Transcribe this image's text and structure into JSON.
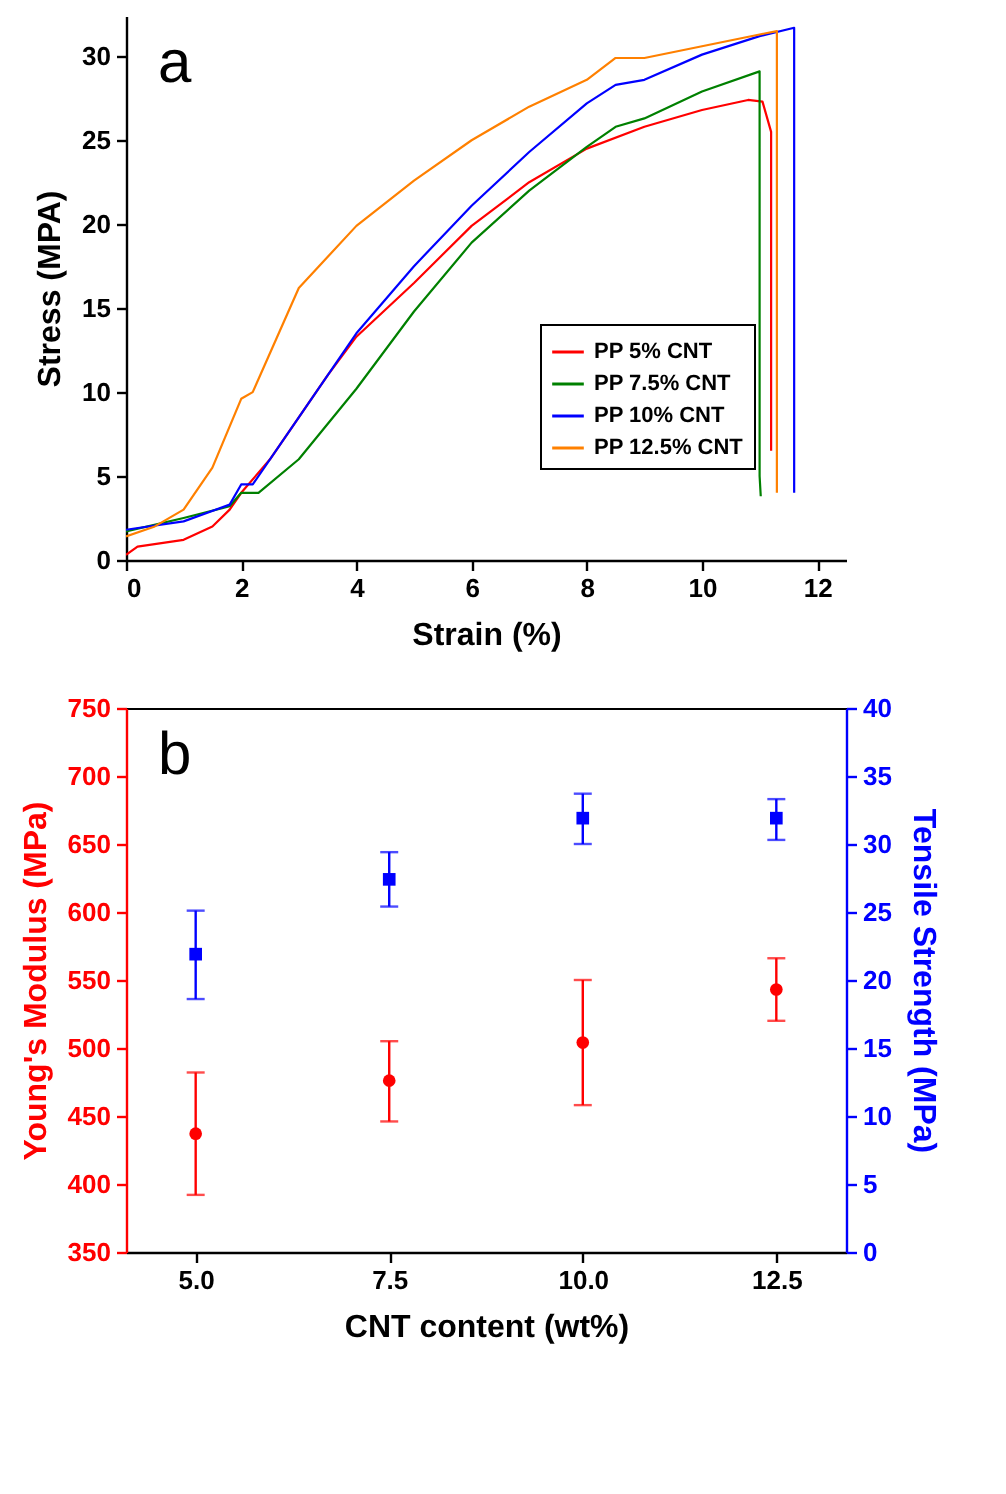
{
  "chart_data": [
    {
      "type": "line",
      "xlabel": "Strain (%)",
      "ylabel": "Stress (MPA)",
      "annotations": [
        "a"
      ],
      "xlim": [
        0,
        12.5
      ],
      "ylim": [
        0,
        32.4
      ],
      "xticks": [
        0,
        2,
        4,
        6,
        8,
        10,
        12
      ],
      "yticks": [
        0,
        5,
        10,
        15,
        20,
        25,
        30
      ],
      "grid": false,
      "legend": "bottom right",
      "series": [
        {
          "name": "PP 5% CNT",
          "color": "#ff0000",
          "x": [
            0,
            0.2,
            1,
            1.5,
            1.8,
            2,
            2.5,
            3,
            3.5,
            4,
            5,
            6,
            7,
            8,
            9,
            10,
            10.8,
            11.05,
            11.2,
            11.2
          ],
          "values": [
            0.3,
            0.8,
            1.2,
            2,
            3,
            4,
            6,
            8.5,
            11,
            13.3,
            16.5,
            19.9,
            22.5,
            24.5,
            25.8,
            26.8,
            27.4,
            27.3,
            25.5,
            6.5
          ]
        },
        {
          "name": "PP 7.5% CNT",
          "color": "#008000",
          "x": [
            0,
            1,
            1.8,
            2,
            2.3,
            3,
            4,
            5,
            6,
            7,
            8,
            8.5,
            9,
            10,
            11,
            11,
            11.02
          ],
          "values": [
            1.7,
            2.5,
            3.2,
            4,
            4,
            6,
            10.2,
            14.8,
            18.9,
            22,
            24.6,
            25.8,
            26.3,
            27.9,
            29.1,
            5,
            3.8
          ]
        },
        {
          "name": "PP 10% CNT",
          "color": "#0000ff",
          "x": [
            0,
            1,
            1.8,
            2,
            2.2,
            3,
            4,
            5,
            6,
            7,
            8,
            8.5,
            9,
            10,
            11,
            11.6,
            11.6
          ],
          "values": [
            1.8,
            2.3,
            3.3,
            4.5,
            4.5,
            8.5,
            13.5,
            17.5,
            21.1,
            24.3,
            27.2,
            28.3,
            28.6,
            30.1,
            31.2,
            31.7,
            4
          ]
        },
        {
          "name": "PP 12.5% CNT",
          "color": "#ff8000",
          "x": [
            0,
            0.5,
            1,
            1.5,
            2,
            2.2,
            3,
            4,
            5,
            6,
            7,
            8,
            8.5,
            9,
            10,
            11,
            11.3,
            11.3
          ],
          "values": [
            1.4,
            2,
            3,
            5.5,
            9.6,
            10,
            16.2,
            19.9,
            22.6,
            25,
            27,
            28.6,
            29.9,
            29.9,
            30.6,
            31.3,
            31.5,
            4
          ]
        }
      ]
    },
    {
      "type": "scatter",
      "xlabel": "CNT content (wt%)",
      "ylabel": "Young's Modulus (MPa)",
      "y2label": "Tensile Strength (MPa)",
      "annotations": [
        "b"
      ],
      "xlim": [
        4.1,
        13.4
      ],
      "ylim": [
        350,
        750
      ],
      "y2lim": [
        0,
        40
      ],
      "xticks": [
        {
          "value": 5,
          "label": "5.0"
        },
        {
          "value": 7.5,
          "label": "7.5"
        },
        {
          "value": 10,
          "label": "10.0"
        },
        {
          "value": 12.5,
          "label": "12.5"
        }
      ],
      "yticks": [
        350,
        400,
        450,
        500,
        550,
        600,
        650,
        700,
        750
      ],
      "y2ticks": [
        0,
        5,
        10,
        15,
        20,
        25,
        30,
        35,
        40
      ],
      "grid": false,
      "series": [
        {
          "color": "#ff0000",
          "marker": "circle",
          "x": [
            5,
            7.5,
            10,
            12.5
          ],
          "values": [
            437,
            476,
            504,
            543
          ],
          "errors": [
            [
              392,
              482
            ],
            [
              446,
              505
            ],
            [
              458,
              550
            ],
            [
              520,
              566
            ]
          ]
        },
        {
          "color": "#0000ff",
          "marker": "square",
          "axis": "y2",
          "x": [
            5,
            7.5,
            10,
            12.5
          ],
          "values": [
            21.9,
            27.4,
            31.9,
            31.9
          ],
          "errors": [
            [
              18.6,
              25.1
            ],
            [
              25.4,
              29.4
            ],
            [
              30.0,
              33.7
            ],
            [
              30.3,
              33.3
            ]
          ]
        }
      ]
    }
  ]
}
